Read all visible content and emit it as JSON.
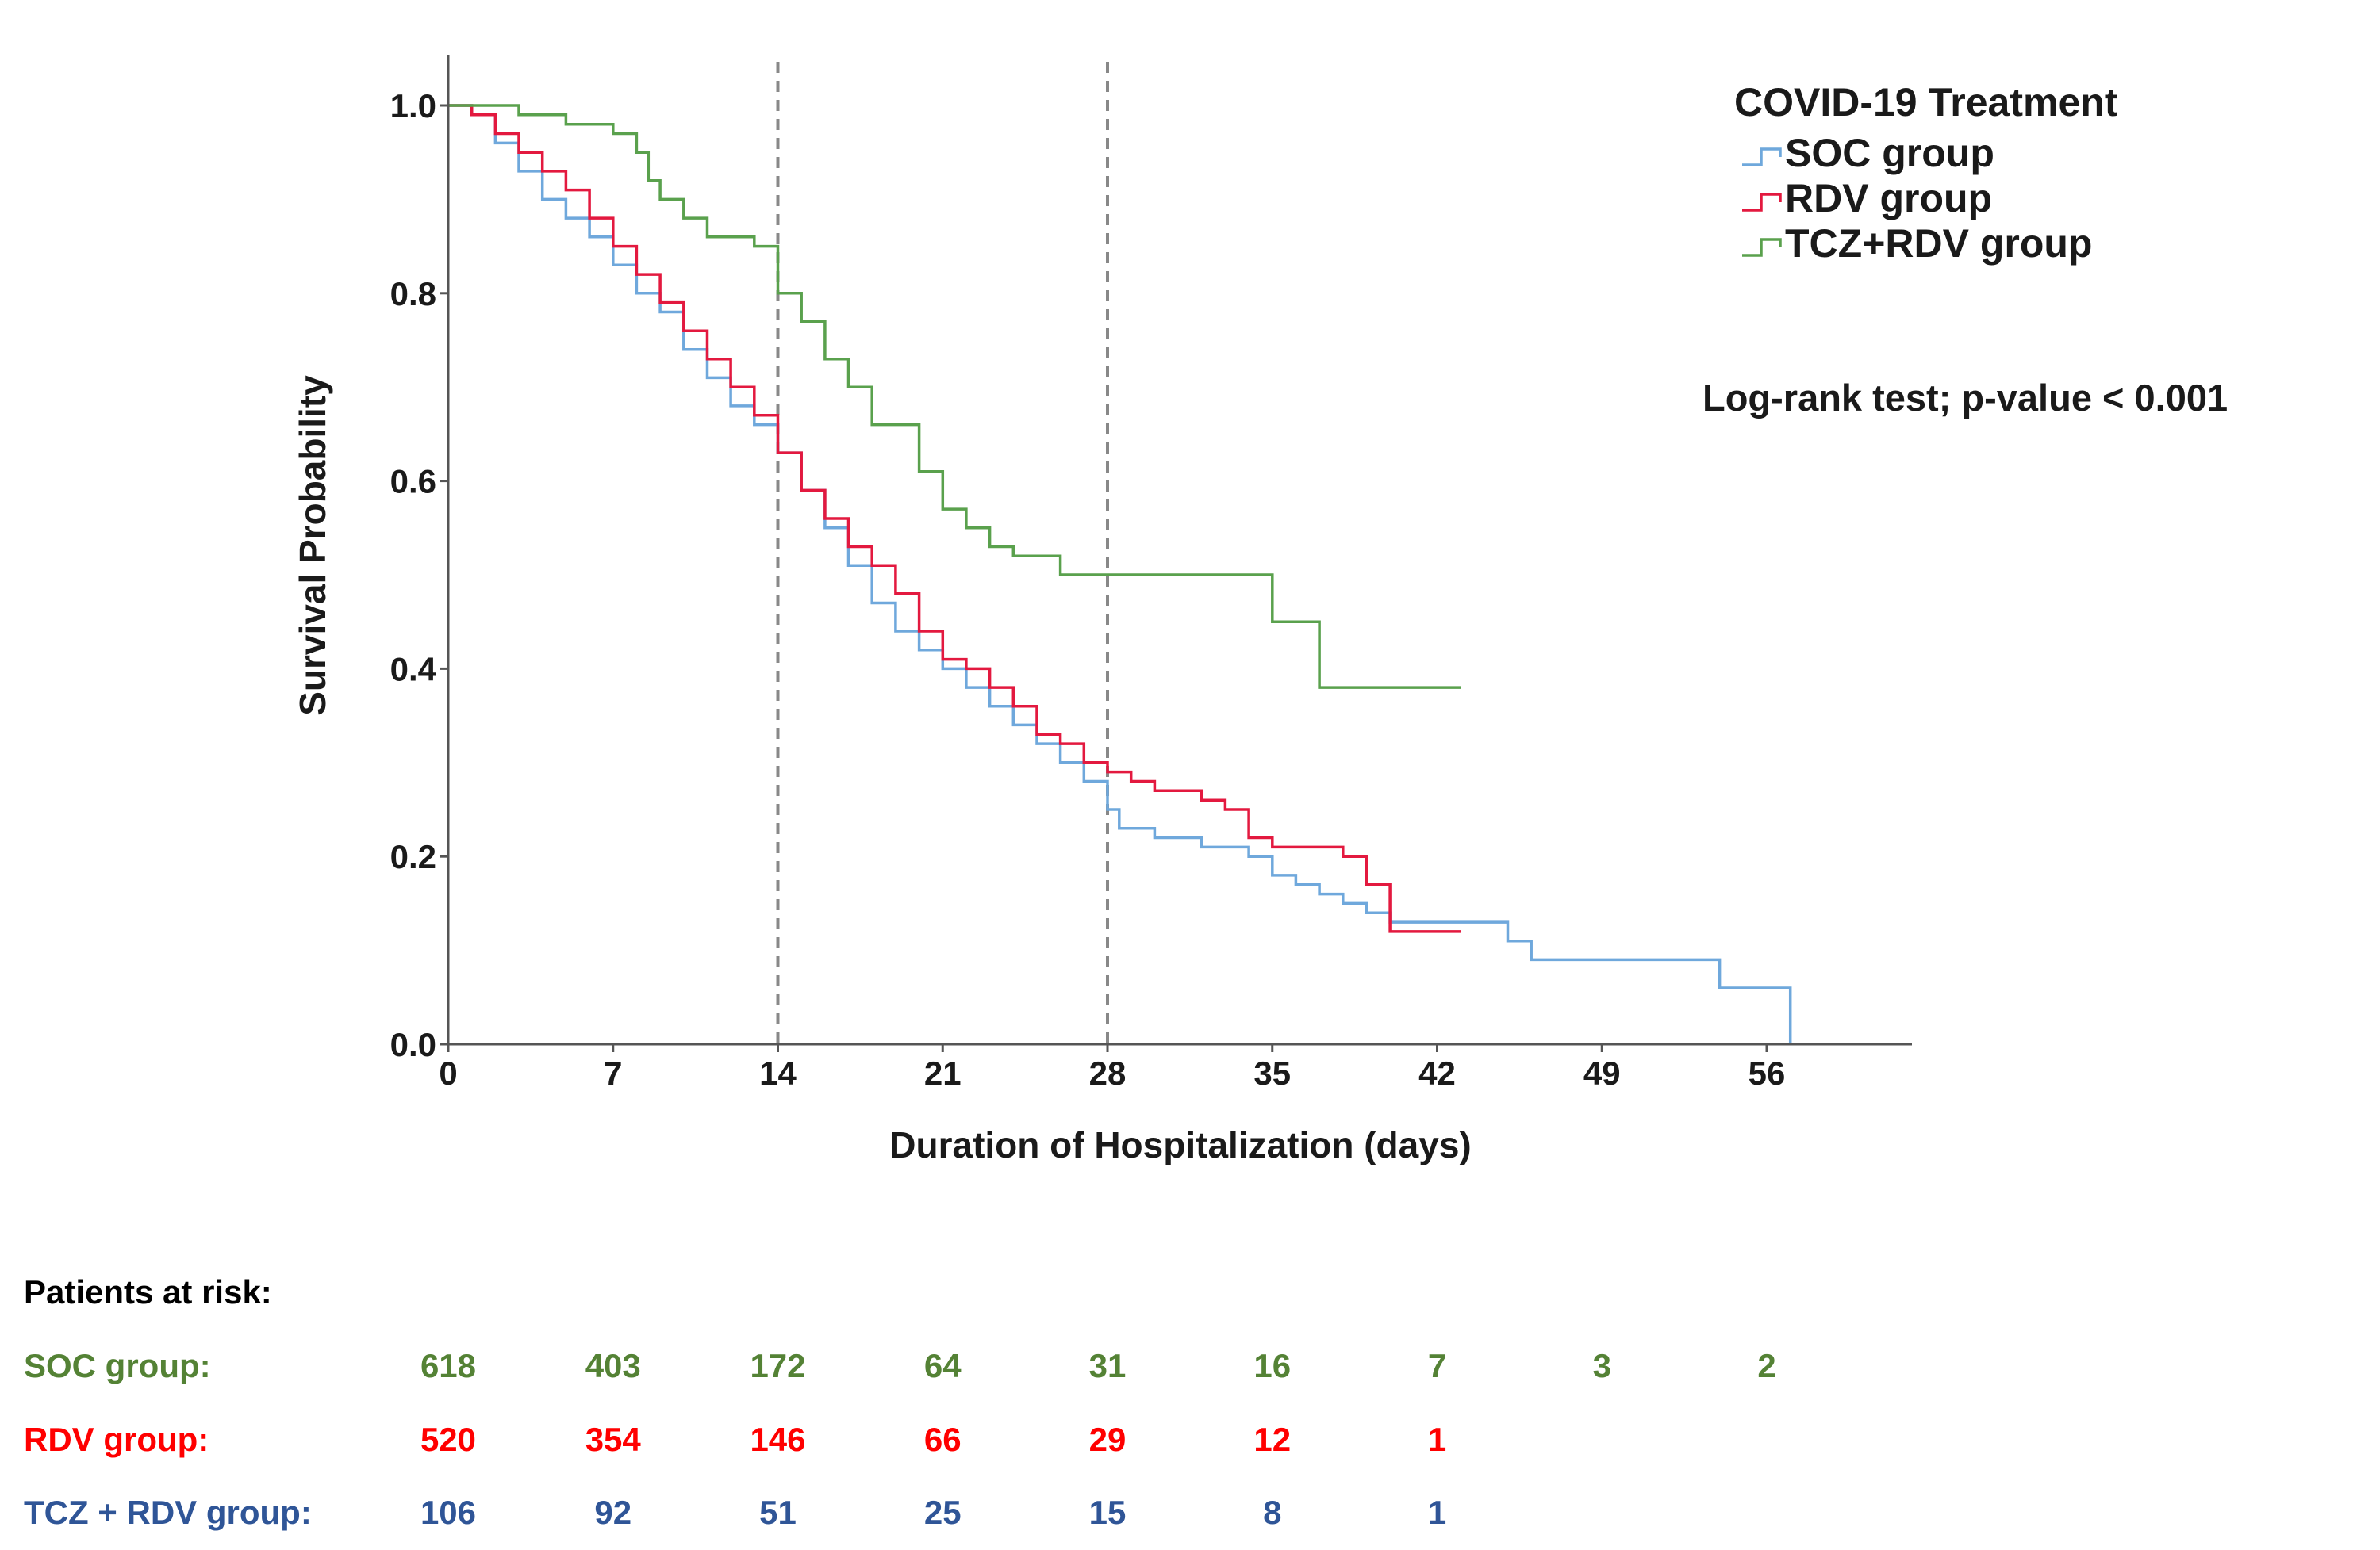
{
  "chart_data": {
    "type": "line",
    "step": true,
    "xlabel": "Duration of Hospitalization (days)",
    "ylabel": "Survival Probability",
    "xlim": [
      0,
      62
    ],
    "ylim": [
      0,
      1.0
    ],
    "x_ticks": [
      "0",
      "7",
      "14",
      "21",
      "28",
      "35",
      "42",
      "49",
      "56"
    ],
    "y_ticks": [
      "0.0",
      "0.2",
      "0.4",
      "0.6",
      "0.8",
      "1.0"
    ],
    "reference_lines_x": [
      14,
      28
    ],
    "grid": false,
    "legend_position": "top-right",
    "legend_title": "COVID-19 Treatment",
    "annotation": "Log-rank test; p-value < 0.001",
    "series": [
      {
        "name": "SOC group",
        "color": "#6fa8dc",
        "points": [
          [
            0,
            1.0
          ],
          [
            1,
            0.99
          ],
          [
            2,
            0.96
          ],
          [
            3,
            0.93
          ],
          [
            4,
            0.9
          ],
          [
            5,
            0.88
          ],
          [
            6,
            0.86
          ],
          [
            7,
            0.83
          ],
          [
            8,
            0.8
          ],
          [
            9,
            0.78
          ],
          [
            10,
            0.74
          ],
          [
            11,
            0.71
          ],
          [
            12,
            0.68
          ],
          [
            13,
            0.66
          ],
          [
            14,
            0.63
          ],
          [
            15,
            0.59
          ],
          [
            16,
            0.55
          ],
          [
            17,
            0.51
          ],
          [
            18,
            0.47
          ],
          [
            19,
            0.44
          ],
          [
            20,
            0.42
          ],
          [
            21,
            0.4
          ],
          [
            22,
            0.38
          ],
          [
            23,
            0.36
          ],
          [
            24,
            0.34
          ],
          [
            25,
            0.32
          ],
          [
            26,
            0.3
          ],
          [
            27,
            0.28
          ],
          [
            28,
            0.25
          ],
          [
            28.5,
            0.23
          ],
          [
            30,
            0.22
          ],
          [
            32,
            0.21
          ],
          [
            34,
            0.2
          ],
          [
            35,
            0.18
          ],
          [
            36,
            0.17
          ],
          [
            37,
            0.16
          ],
          [
            38,
            0.15
          ],
          [
            39,
            0.14
          ],
          [
            40,
            0.13
          ],
          [
            44,
            0.13
          ],
          [
            45,
            0.11
          ],
          [
            46,
            0.09
          ],
          [
            53.5,
            0.09
          ],
          [
            54,
            0.06
          ],
          [
            57,
            0.06
          ],
          [
            57,
            0.0
          ]
        ]
      },
      {
        "name": "RDV group",
        "color": "#e3193f",
        "points": [
          [
            0,
            1.0
          ],
          [
            1,
            0.99
          ],
          [
            2,
            0.97
          ],
          [
            3,
            0.95
          ],
          [
            4,
            0.93
          ],
          [
            5,
            0.91
          ],
          [
            6,
            0.88
          ],
          [
            7,
            0.85
          ],
          [
            8,
            0.82
          ],
          [
            9,
            0.79
          ],
          [
            10,
            0.76
          ],
          [
            11,
            0.73
          ],
          [
            12,
            0.7
          ],
          [
            13,
            0.67
          ],
          [
            14,
            0.63
          ],
          [
            15,
            0.59
          ],
          [
            16,
            0.56
          ],
          [
            17,
            0.53
          ],
          [
            18,
            0.51
          ],
          [
            19,
            0.48
          ],
          [
            20,
            0.44
          ],
          [
            21,
            0.41
          ],
          [
            22,
            0.4
          ],
          [
            23,
            0.38
          ],
          [
            24,
            0.36
          ],
          [
            25,
            0.33
          ],
          [
            26,
            0.32
          ],
          [
            27,
            0.3
          ],
          [
            28,
            0.29
          ],
          [
            29,
            0.28
          ],
          [
            30,
            0.27
          ],
          [
            32,
            0.26
          ],
          [
            33,
            0.25
          ],
          [
            34,
            0.22
          ],
          [
            35,
            0.21
          ],
          [
            37,
            0.21
          ],
          [
            38,
            0.2
          ],
          [
            39,
            0.17
          ],
          [
            40,
            0.12
          ],
          [
            43,
            0.12
          ]
        ]
      },
      {
        "name": "TCZ+RDV group",
        "color": "#5aa14d",
        "points": [
          [
            0,
            1.0
          ],
          [
            3,
            0.99
          ],
          [
            5,
            0.98
          ],
          [
            7,
            0.97
          ],
          [
            8,
            0.95
          ],
          [
            8.5,
            0.92
          ],
          [
            9,
            0.9
          ],
          [
            10,
            0.88
          ],
          [
            11,
            0.86
          ],
          [
            13,
            0.85
          ],
          [
            14,
            0.8
          ],
          [
            15,
            0.77
          ],
          [
            16,
            0.73
          ],
          [
            17,
            0.7
          ],
          [
            18,
            0.66
          ],
          [
            20,
            0.61
          ],
          [
            21,
            0.57
          ],
          [
            22,
            0.55
          ],
          [
            23,
            0.53
          ],
          [
            24,
            0.52
          ],
          [
            26,
            0.5
          ],
          [
            34,
            0.5
          ],
          [
            35,
            0.45
          ],
          [
            37,
            0.45
          ],
          [
            37,
            0.38
          ],
          [
            43,
            0.38
          ]
        ]
      }
    ],
    "risk_table": {
      "title": "Patients at risk:",
      "rows": [
        {
          "label": "SOC group:",
          "color": "#548235",
          "values": [
            "618",
            "403",
            "172",
            "64",
            "31",
            "16",
            "7",
            "3",
            "2"
          ]
        },
        {
          "label": "RDV group:",
          "color": "#ff0000",
          "values": [
            "520",
            "354",
            "146",
            "66",
            "29",
            "12",
            "1"
          ]
        },
        {
          "label": "TCZ + RDV group:",
          "color": "#2f5597",
          "values": [
            "106",
            "92",
            "51",
            "25",
            "15",
            "8",
            "1"
          ]
        }
      ]
    }
  }
}
